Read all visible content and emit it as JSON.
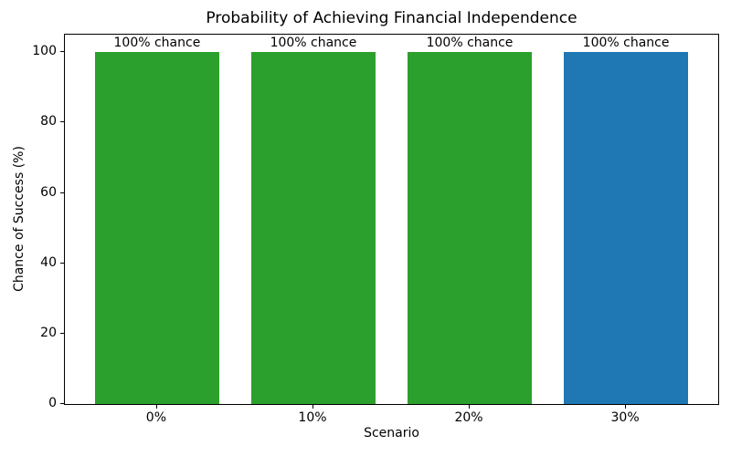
{
  "chart_data": {
    "type": "bar",
    "title": "Probability of Achieving Financial Independence",
    "xlabel": "Scenario",
    "ylabel": "Chance of Success (%)",
    "categories": [
      "0%",
      "10%",
      "20%",
      "30%"
    ],
    "values": [
      100,
      100,
      100,
      100
    ],
    "bar_labels": [
      "100% chance",
      "100% chance",
      "100% chance",
      "100% chance"
    ],
    "bar_colors": [
      "#2ca02c",
      "#2ca02c",
      "#2ca02c",
      "#1f77b4"
    ],
    "ylim": [
      0,
      105
    ],
    "yticks": [
      0,
      20,
      40,
      60,
      80,
      100
    ],
    "bar_width_fraction": 0.8,
    "grid": false,
    "legend": null,
    "background_color": "#ffffff",
    "axis_color": "#000000"
  }
}
